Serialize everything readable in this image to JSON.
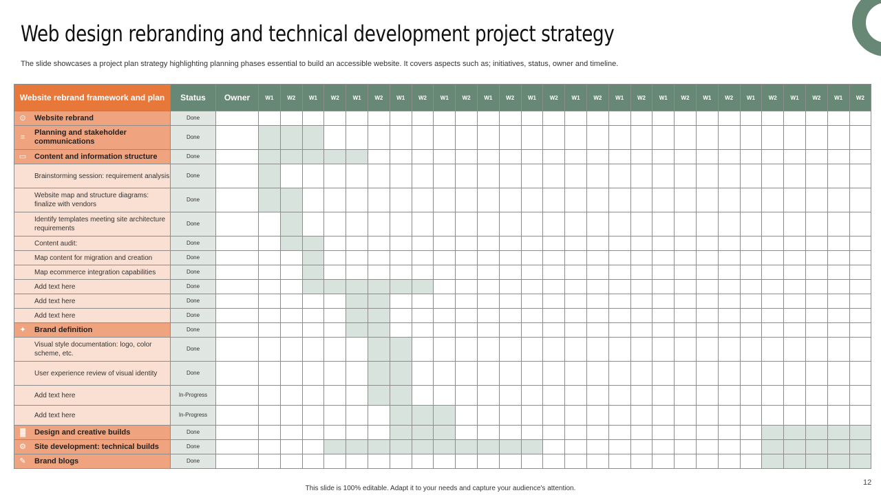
{
  "slide": {
    "title": "Web design rebranding and technical development project strategy",
    "subtitle": "The slide showcases a project plan strategy highlighting planning phases essential to build an accessible website. It covers aspects such as; initiatives, status, owner and timeline.",
    "footer": "This slide is 100% editable. Adapt it to your needs and capture your audience's attention.",
    "page_number": "12",
    "accent_color": "#668874",
    "header_orange": "#e8773a"
  },
  "table": {
    "header": {
      "initiative": "Website rebrand framework and plan",
      "status": "Status",
      "owner": "Owner",
      "weeks": [
        "W1",
        "W2",
        "W1",
        "W2",
        "W1",
        "W2",
        "W1",
        "W2",
        "W1",
        "W2",
        "W1",
        "W2",
        "W1",
        "W2",
        "W1",
        "W2",
        "W1",
        "W2",
        "W1",
        "W2",
        "W1",
        "W2",
        "W1",
        "W2",
        "W1",
        "W2",
        "W1",
        "W2"
      ]
    },
    "rows": [
      {
        "label": "Website rebrand",
        "level": 1,
        "icon": "globe-icon",
        "status": "Done",
        "filled": []
      },
      {
        "label": "Planning and stakeholder communications",
        "level": 1,
        "icon": "document-icon",
        "status": "Done",
        "filled": [
          1,
          2,
          3
        ]
      },
      {
        "label": "Content and information structure",
        "level": 1,
        "icon": "monitor-icon",
        "status": "Done",
        "filled": [
          1,
          2,
          3,
          4,
          5
        ]
      },
      {
        "label": "Brainstorming session: requirement analysis",
        "level": 2,
        "status": "Done",
        "filled": [
          1
        ]
      },
      {
        "label": "Website map and structure diagrams: finalize with vendors",
        "level": 2,
        "status": "Done",
        "filled": [
          1,
          2
        ]
      },
      {
        "label": "Identify templates meeting site architecture requirements",
        "level": 2,
        "status": "Done",
        "filled": [
          2
        ]
      },
      {
        "label": "Content audit:",
        "level": 2,
        "status": "Done",
        "filled": [
          2,
          3
        ]
      },
      {
        "label": "Map content for migration and creation",
        "level": 2,
        "status": "Done",
        "filled": [
          3
        ]
      },
      {
        "label": "Map ecommerce integration capabilities",
        "level": 2,
        "status": "Done",
        "filled": [
          3
        ]
      },
      {
        "label": "Add text here",
        "level": 2,
        "status": "Done",
        "filled": [
          3,
          4,
          5,
          6,
          7,
          8
        ]
      },
      {
        "label": "Add text here",
        "level": 2,
        "status": "Done",
        "filled": [
          5,
          6
        ]
      },
      {
        "label": "Add text here",
        "level": 2,
        "status": "Done",
        "filled": [
          5,
          6
        ]
      },
      {
        "label": "Brand definition",
        "level": 1,
        "icon": "handshake-icon",
        "status": "Done",
        "filled": [
          5,
          6
        ]
      },
      {
        "label": "Visual style documentation: logo, color scheme, etc.",
        "level": 2,
        "status": "Done",
        "filled": [
          6,
          7
        ]
      },
      {
        "label": "User experience review of visual identity",
        "level": 2,
        "status": "Done",
        "filled": [
          6,
          7
        ]
      },
      {
        "label": "Add text here",
        "level": 2,
        "status": "In-Progress",
        "filled": [
          6,
          7
        ]
      },
      {
        "label": "Add text here",
        "level": 2,
        "status": "In-Progress",
        "filled": [
          7,
          8,
          9
        ]
      },
      {
        "label": "Design and creative builds",
        "level": 1,
        "icon": "chart-icon",
        "status": "Done",
        "filled": [
          7,
          8,
          9,
          24,
          25,
          26,
          27,
          28
        ]
      },
      {
        "label": "Site development: technical builds",
        "level": 1,
        "icon": "gear-icon",
        "status": "Done",
        "filled": [
          4,
          5,
          6,
          7,
          8,
          9,
          10,
          11,
          12,
          13,
          24,
          25,
          26,
          27,
          28
        ]
      },
      {
        "label": "Brand blogs",
        "level": 1,
        "icon": "blog-icon",
        "status": "Done",
        "filled": [
          24,
          25,
          26,
          27,
          28
        ]
      }
    ]
  }
}
